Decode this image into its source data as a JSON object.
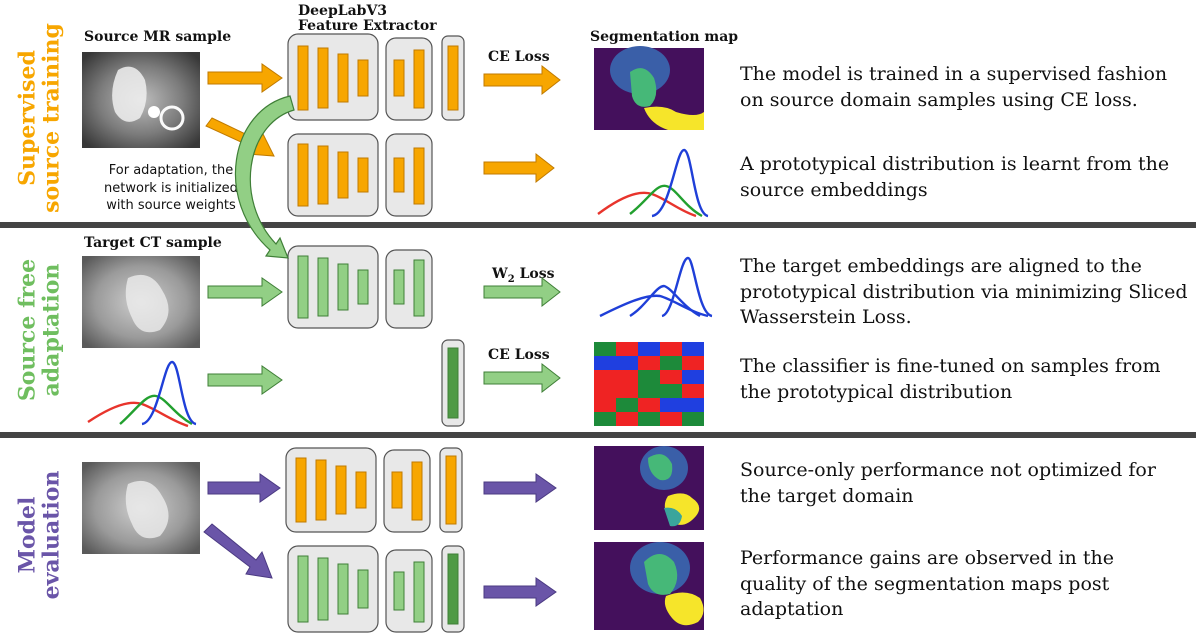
{
  "colors": {
    "orange": "#f7a600",
    "orange_edge": "#c07a00",
    "green_light": "#92cf85",
    "green_dark": "#4f9a45",
    "green_edge": "#3f7f37",
    "purple": "#6a55a8",
    "box_fill": "#e8e8e8",
    "divider": "#444444",
    "seg_bg": "#44105c",
    "seg_blue": "#3a5fa8",
    "seg_green": "#46b878",
    "seg_yellow": "#f6e52a",
    "dist_red": "#e8342c",
    "dist_green": "#22a02f",
    "dist_blue": "#1f3fd8",
    "grid_red": "#ef2323",
    "grid_blue": "#1f3fe0",
    "grid_green": "#1d8a3a"
  },
  "sections": {
    "supervised": {
      "line1": "Supervised",
      "line2": "source training",
      "color": "#f7a600"
    },
    "adaptation": {
      "line1": "Source free",
      "line2": "adaptation",
      "color": "#6fbe5f"
    },
    "evaluation": {
      "line1": "Model",
      "line2": "evaluation",
      "color": "#6a55a8"
    }
  },
  "labels": {
    "source_mr": "Source MR sample",
    "extractor_line1": "DeepLabV3",
    "extractor_line2": "Feature Extractor",
    "segmentation_map": "Segmentation map",
    "target_ct": "Target CT sample",
    "ce_loss_1": "CE Loss",
    "w2_loss": "W",
    "w2_sub": "2",
    "w2_suffix": " Loss",
    "ce_loss_2": "CE Loss"
  },
  "init_note": {
    "line1": "For adaptation, the",
    "line2": "network is initialized",
    "line3": "with source weights"
  },
  "descriptions": {
    "d1_line1": "The model is trained in a supervised fashion",
    "d1_line2": "on source domain samples using CE loss.",
    "d2_line1": "A prototypical distribution is learnt from the",
    "d2_line2": "source embeddings",
    "d3_line1": "The target embeddings are aligned to the",
    "d3_line2": "prototypical distribution via minimizing Sliced",
    "d3_line3": "Wasserstein Loss.",
    "d4_line1": "The classifier is fine-tuned on samples from",
    "d4_line2": "the prototypical distribution",
    "d5_line1": "Source-only performance not optimized for",
    "d5_line2": "the target domain",
    "d6_line1": "Performance gains are observed in the",
    "d6_line2": "quality of the segmentation maps post",
    "d6_line3": "adaptation"
  }
}
